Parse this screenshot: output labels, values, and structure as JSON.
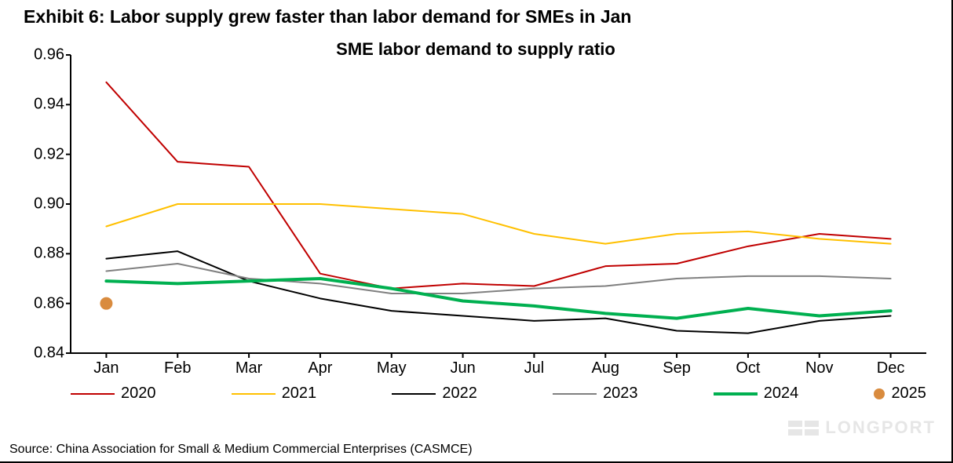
{
  "exhibit": {
    "title": "Exhibit 6: Labor supply grew faster than labor demand for SMEs in Jan",
    "subtitle": "SME labor demand to supply ratio",
    "source": "Source: China Association for Small & Medium Commercial Enterprises (CASMCE)",
    "watermark": "LONGPORT"
  },
  "chart": {
    "type": "line",
    "background_color": "#ffffff",
    "axis_color": "#000000",
    "label_fontsize": 20,
    "title_fontsize": 23,
    "subtitle_fontsize": 22,
    "x_categories": [
      "Jan",
      "Feb",
      "Mar",
      "Apr",
      "May",
      "Jun",
      "Jul",
      "Aug",
      "Sep",
      "Oct",
      "Nov",
      "Dec"
    ],
    "ylim": [
      0.84,
      0.96
    ],
    "ytick_step": 0.02,
    "yticks": [
      0.84,
      0.86,
      0.88,
      0.9,
      0.92,
      0.94,
      0.96
    ],
    "series": [
      {
        "name": "2020",
        "color": "#c00000",
        "width": 2,
        "values": [
          0.949,
          0.917,
          0.915,
          0.872,
          0.866,
          0.868,
          0.867,
          0.875,
          0.876,
          0.883,
          0.888,
          0.886
        ]
      },
      {
        "name": "2021",
        "color": "#ffc000",
        "width": 2,
        "values": [
          0.891,
          0.9,
          0.9,
          0.9,
          0.898,
          0.896,
          0.888,
          0.884,
          0.888,
          0.889,
          0.886,
          0.884
        ]
      },
      {
        "name": "2022",
        "color": "#000000",
        "width": 2,
        "values": [
          0.878,
          0.881,
          0.869,
          0.862,
          0.857,
          0.855,
          0.853,
          0.854,
          0.849,
          0.848,
          0.853,
          0.855
        ]
      },
      {
        "name": "2023",
        "color": "#808080",
        "width": 2,
        "values": [
          0.873,
          0.876,
          0.87,
          0.868,
          0.864,
          0.864,
          0.866,
          0.867,
          0.87,
          0.871,
          0.871,
          0.87
        ]
      },
      {
        "name": "2024",
        "color": "#00b050",
        "width": 4,
        "values": [
          0.869,
          0.868,
          0.869,
          0.87,
          0.866,
          0.861,
          0.859,
          0.856,
          0.854,
          0.858,
          0.855,
          0.857
        ]
      }
    ],
    "points": [
      {
        "name": "2025",
        "color": "#d98b3e",
        "radius": 8,
        "x_index": 0,
        "value": 0.86
      }
    ],
    "legend": [
      {
        "label": "2020",
        "color": "#c00000",
        "width": 2,
        "type": "line"
      },
      {
        "label": "2021",
        "color": "#ffc000",
        "width": 2,
        "type": "line"
      },
      {
        "label": "2022",
        "color": "#000000",
        "width": 2,
        "type": "line"
      },
      {
        "label": "2023",
        "color": "#808080",
        "width": 2,
        "type": "line"
      },
      {
        "label": "2024",
        "color": "#00b050",
        "width": 4,
        "type": "line"
      },
      {
        "label": "2025",
        "color": "#d98b3e",
        "type": "dot"
      }
    ]
  }
}
